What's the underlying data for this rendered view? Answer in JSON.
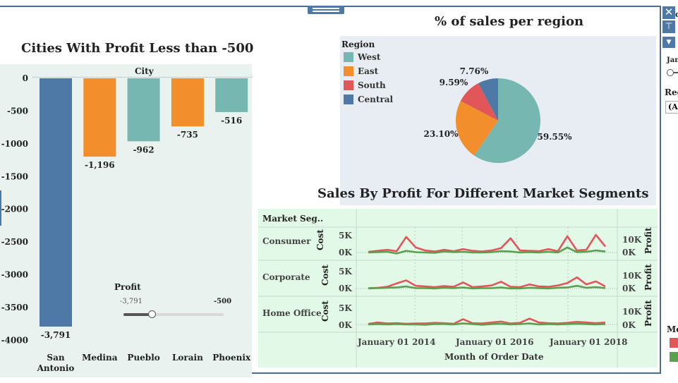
{
  "bar_panel": {
    "title": "Cities With Profit Less than -500",
    "header": "City",
    "filter_title": "Profit",
    "filter_min": "-3,791",
    "filter_max": "-500",
    "filter_value": 0.28
  },
  "pie_panel": {
    "title": "% of sales per region",
    "legend_title": "Region",
    "legend": [
      {
        "label": "West",
        "color": "#76b7b2"
      },
      {
        "label": "East",
        "color": "#f28e2b"
      },
      {
        "label": "South",
        "color": "#e15759"
      },
      {
        "label": "Central",
        "color": "#4e79a7"
      }
    ]
  },
  "line_panel": {
    "title": "Sales By Profit For Different Market Segments",
    "column_header": "Market Seg..",
    "rows": [
      {
        "label": "Consumer",
        "left_axis": "Cost",
        "right_axis": "Profit",
        "left_ticks": [
          "5K",
          "0K"
        ],
        "right_ticks": [
          "10K",
          "0K"
        ]
      },
      {
        "label": "Corporate",
        "left_axis": "Cost",
        "right_axis": "Profit",
        "left_ticks": [
          "5K",
          "0K"
        ],
        "right_ticks": [
          "10K",
          "0K"
        ]
      },
      {
        "label": "Home Office",
        "left_axis": "Cost",
        "right_axis": "Profit",
        "left_ticks": [
          "5K",
          "0K"
        ],
        "right_ticks": [
          "10K",
          "0K"
        ]
      }
    ],
    "x_ticks": [
      "January 01 2014",
      "January 01 2016",
      "January 01 2018"
    ],
    "x_title": "Month of Order Date"
  },
  "side_panel": {
    "close_icon": "close-icon",
    "pin_icon": "pin-icon",
    "menu_icon": "dropdown-arrow-icon",
    "frag_top": "c",
    "frag_jan": "Jan",
    "frag_reg": "Reg",
    "frag_all": "(Al",
    "frag_me": "Me",
    "swatch_colors": [
      "#e15759",
      "#59a14f"
    ]
  },
  "chart_data": [
    {
      "type": "bar",
      "title": "Cities With Profit Less than -500",
      "xlabel": "City",
      "ylabel": "",
      "categories": [
        "San Antonio",
        "Medina",
        "Pueblo",
        "Lorain",
        "Phoenix"
      ],
      "values": [
        -3791,
        -1196,
        -962,
        -735,
        -516
      ],
      "value_labels": [
        "-3,791",
        "-1,196",
        "-962",
        "-735",
        "-516"
      ],
      "colors": [
        "#4e79a7",
        "#f28e2b",
        "#76b7b2",
        "#f28e2b",
        "#76b7b2"
      ],
      "ylim": [
        -4100,
        80
      ],
      "y_ticks": [
        0,
        -500,
        -1000,
        -1500,
        -2000,
        -2500,
        -3000,
        -3500,
        -4000
      ],
      "grid": false
    },
    {
      "type": "pie",
      "title": "% of sales per region",
      "categories": [
        "West",
        "East",
        "South",
        "Central"
      ],
      "values": [
        59.55,
        23.1,
        9.59,
        7.76
      ],
      "value_labels": [
        "59.55%",
        "23.10%",
        "9.59%",
        "7.76%"
      ],
      "colors": [
        "#76b7b2",
        "#f28e2b",
        "#e15759",
        "#4e79a7"
      ]
    },
    {
      "type": "line",
      "title": "Sales By Profit For Different Market Segments",
      "xlabel": "Month of Order Date",
      "x_ticks": [
        "January 01 2014",
        "January 01 2016",
        "January 01 2018"
      ],
      "x": [
        "2014-01",
        "2014-03",
        "2014-05",
        "2014-07",
        "2014-09",
        "2014-11",
        "2015-01",
        "2015-03",
        "2015-05",
        "2015-07",
        "2015-09",
        "2015-11",
        "2016-01",
        "2016-03",
        "2016-05",
        "2016-07",
        "2016-09",
        "2016-11",
        "2017-01",
        "2017-03",
        "2017-05",
        "2017-07",
        "2017-09",
        "2017-11",
        "2018-01",
        "2018-03"
      ],
      "panels": [
        {
          "segment": "Consumer",
          "series": [
            {
              "name": "Cost",
              "color": "#e15759",
              "values": [
                0.2,
                0.5,
                0.8,
                0.4,
                4.6,
                1.5,
                0.6,
                0.3,
                0.8,
                0.4,
                1.0,
                0.5,
                0.3,
                0.6,
                1.3,
                4.2,
                0.6,
                0.5,
                0.4,
                1.0,
                0.4,
                4.8,
                0.6,
                0.8,
                5.2,
                1.8
              ]
            },
            {
              "name": "Profit",
              "color": "#59a14f",
              "values": [
                0.0,
                0.1,
                0.2,
                -0.3,
                0.5,
                0.1,
                0.0,
                -0.1,
                0.3,
                0.1,
                0.2,
                0.0,
                0.0,
                0.1,
                0.4,
                0.3,
                0.0,
                0.1,
                0.0,
                0.2,
                0.0,
                1.5,
                0.1,
                0.2,
                0.6,
                0.3
              ]
            }
          ]
        },
        {
          "segment": "Corporate",
          "series": [
            {
              "name": "Cost",
              "color": "#e15759",
              "values": [
                0.1,
                0.2,
                0.5,
                1.5,
                2.4,
                0.8,
                0.6,
                0.4,
                0.7,
                0.5,
                1.8,
                0.4,
                0.6,
                0.9,
                2.0,
                0.5,
                0.4,
                1.2,
                0.6,
                0.5,
                0.9,
                1.6,
                3.3,
                1.2,
                2.1,
                0.6
              ]
            },
            {
              "name": "Profit",
              "color": "#59a14f",
              "values": [
                0.0,
                0.1,
                0.2,
                0.3,
                0.6,
                0.1,
                0.1,
                0.0,
                0.2,
                0.1,
                0.3,
                0.0,
                0.1,
                0.1,
                0.3,
                0.0,
                0.0,
                0.2,
                0.1,
                0.0,
                0.2,
                0.3,
                0.8,
                0.2,
                0.4,
                0.1
              ]
            }
          ]
        },
        {
          "segment": "Home Office",
          "series": [
            {
              "name": "Cost",
              "color": "#e15759",
              "values": [
                0.2,
                0.6,
                0.3,
                0.4,
                0.2,
                0.3,
                0.3,
                0.5,
                0.4,
                0.2,
                1.6,
                0.4,
                0.3,
                0.6,
                0.9,
                0.3,
                0.5,
                1.8,
                0.6,
                0.4,
                0.3,
                0.5,
                0.8,
                0.6,
                0.4,
                0.6
              ]
            },
            {
              "name": "Profit",
              "color": "#59a14f",
              "values": [
                0.0,
                0.1,
                0.0,
                0.1,
                0.0,
                0.0,
                -0.1,
                0.1,
                0.1,
                0.0,
                0.3,
                0.1,
                -0.1,
                0.1,
                0.2,
                0.0,
                0.1,
                0.3,
                0.0,
                0.1,
                0.0,
                0.1,
                0.2,
                0.1,
                0.0,
                0.1
              ]
            }
          ]
        }
      ]
    }
  ]
}
